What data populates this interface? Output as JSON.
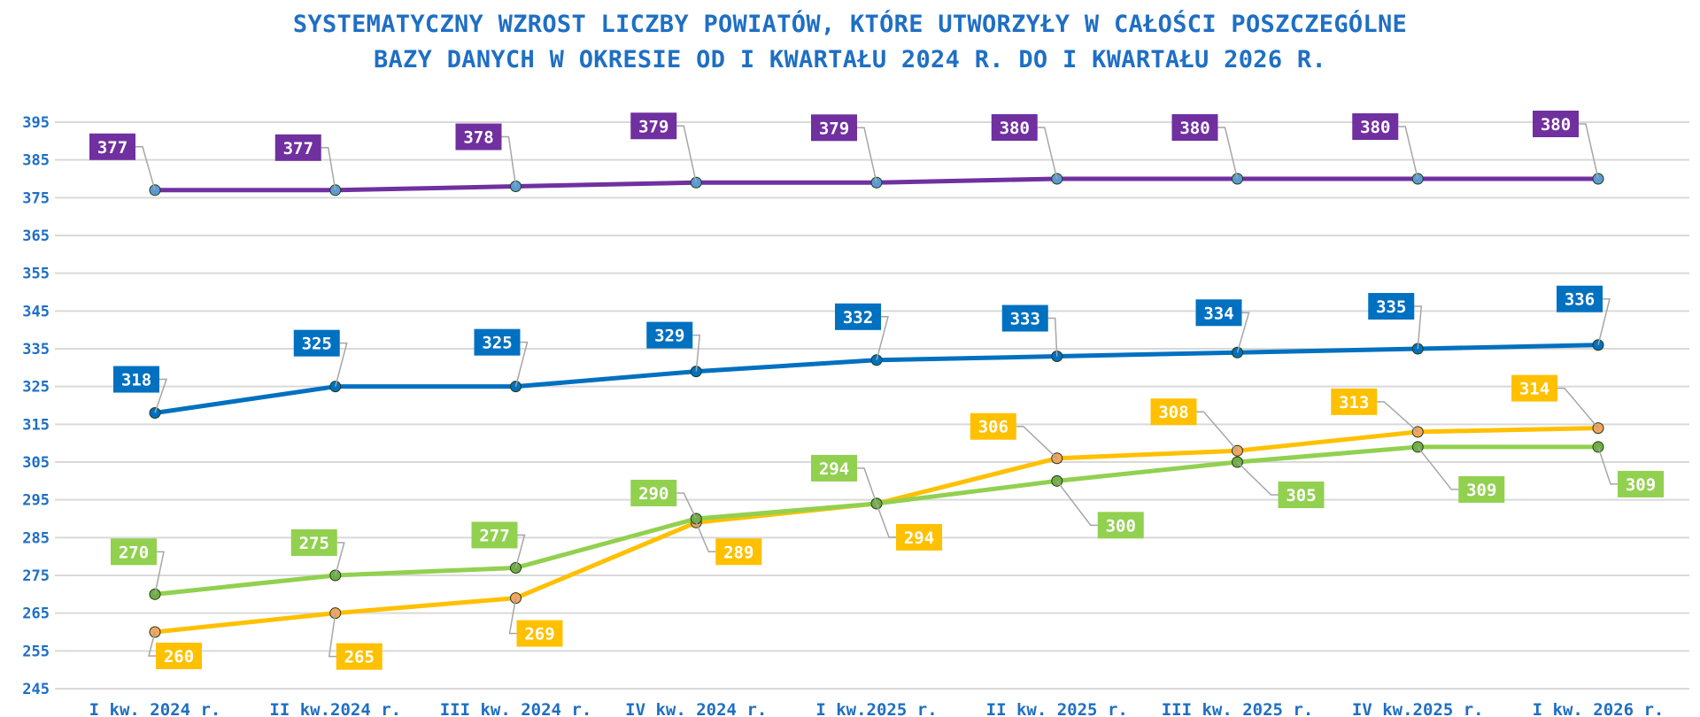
{
  "chart_data": {
    "type": "line",
    "title_line1": "SYSTEMATYCZNY WZROST LICZBY POWIATÓW, KTÓRE UTWORZYŁY W CAŁOŚCI POSZCZEGÓLNE",
    "title_line2": "BAZY DANYCH W OKRESIE OD I KWARTAŁU 2024 R. DO I KWARTAŁU 2026 R.",
    "xlabel": "",
    "ylabel": "",
    "ylim": [
      245,
      395
    ],
    "yticks": [
      245,
      255,
      265,
      275,
      285,
      295,
      305,
      315,
      325,
      335,
      345,
      355,
      365,
      375,
      385,
      395
    ],
    "categories": [
      "I kw. 2024 r.",
      "II kw.2024 r.",
      "III kw. 2024 r.",
      "IV kw. 2024 r.",
      "I kw.2025 r.",
      "II kw. 2025 r.",
      "III kw. 2025 r.",
      "IV kw.2025 r.",
      "I kw. 2026 r."
    ],
    "grid": true,
    "legend": "none",
    "series": [
      {
        "color": "#7030A0",
        "marker_color": "#5B9BD5",
        "values": [
          377,
          377,
          378,
          379,
          379,
          380,
          380,
          380,
          380
        ],
        "label_position": "above-left"
      },
      {
        "color": "#0070C0",
        "marker_color": "#0070C0",
        "values": [
          318,
          325,
          325,
          329,
          332,
          333,
          334,
          335,
          336
        ],
        "label_position": "above-left"
      },
      {
        "color": "#FFC000",
        "marker_color": "#F4A460",
        "values": [
          260,
          265,
          269,
          289,
          294,
          306,
          308,
          313,
          314
        ],
        "label_position": "mixed"
      },
      {
        "color": "#92D050",
        "marker_color": "#70AD47",
        "values": [
          270,
          275,
          277,
          290,
          294,
          300,
          305,
          309,
          309
        ],
        "label_position": "mixed"
      }
    ]
  }
}
